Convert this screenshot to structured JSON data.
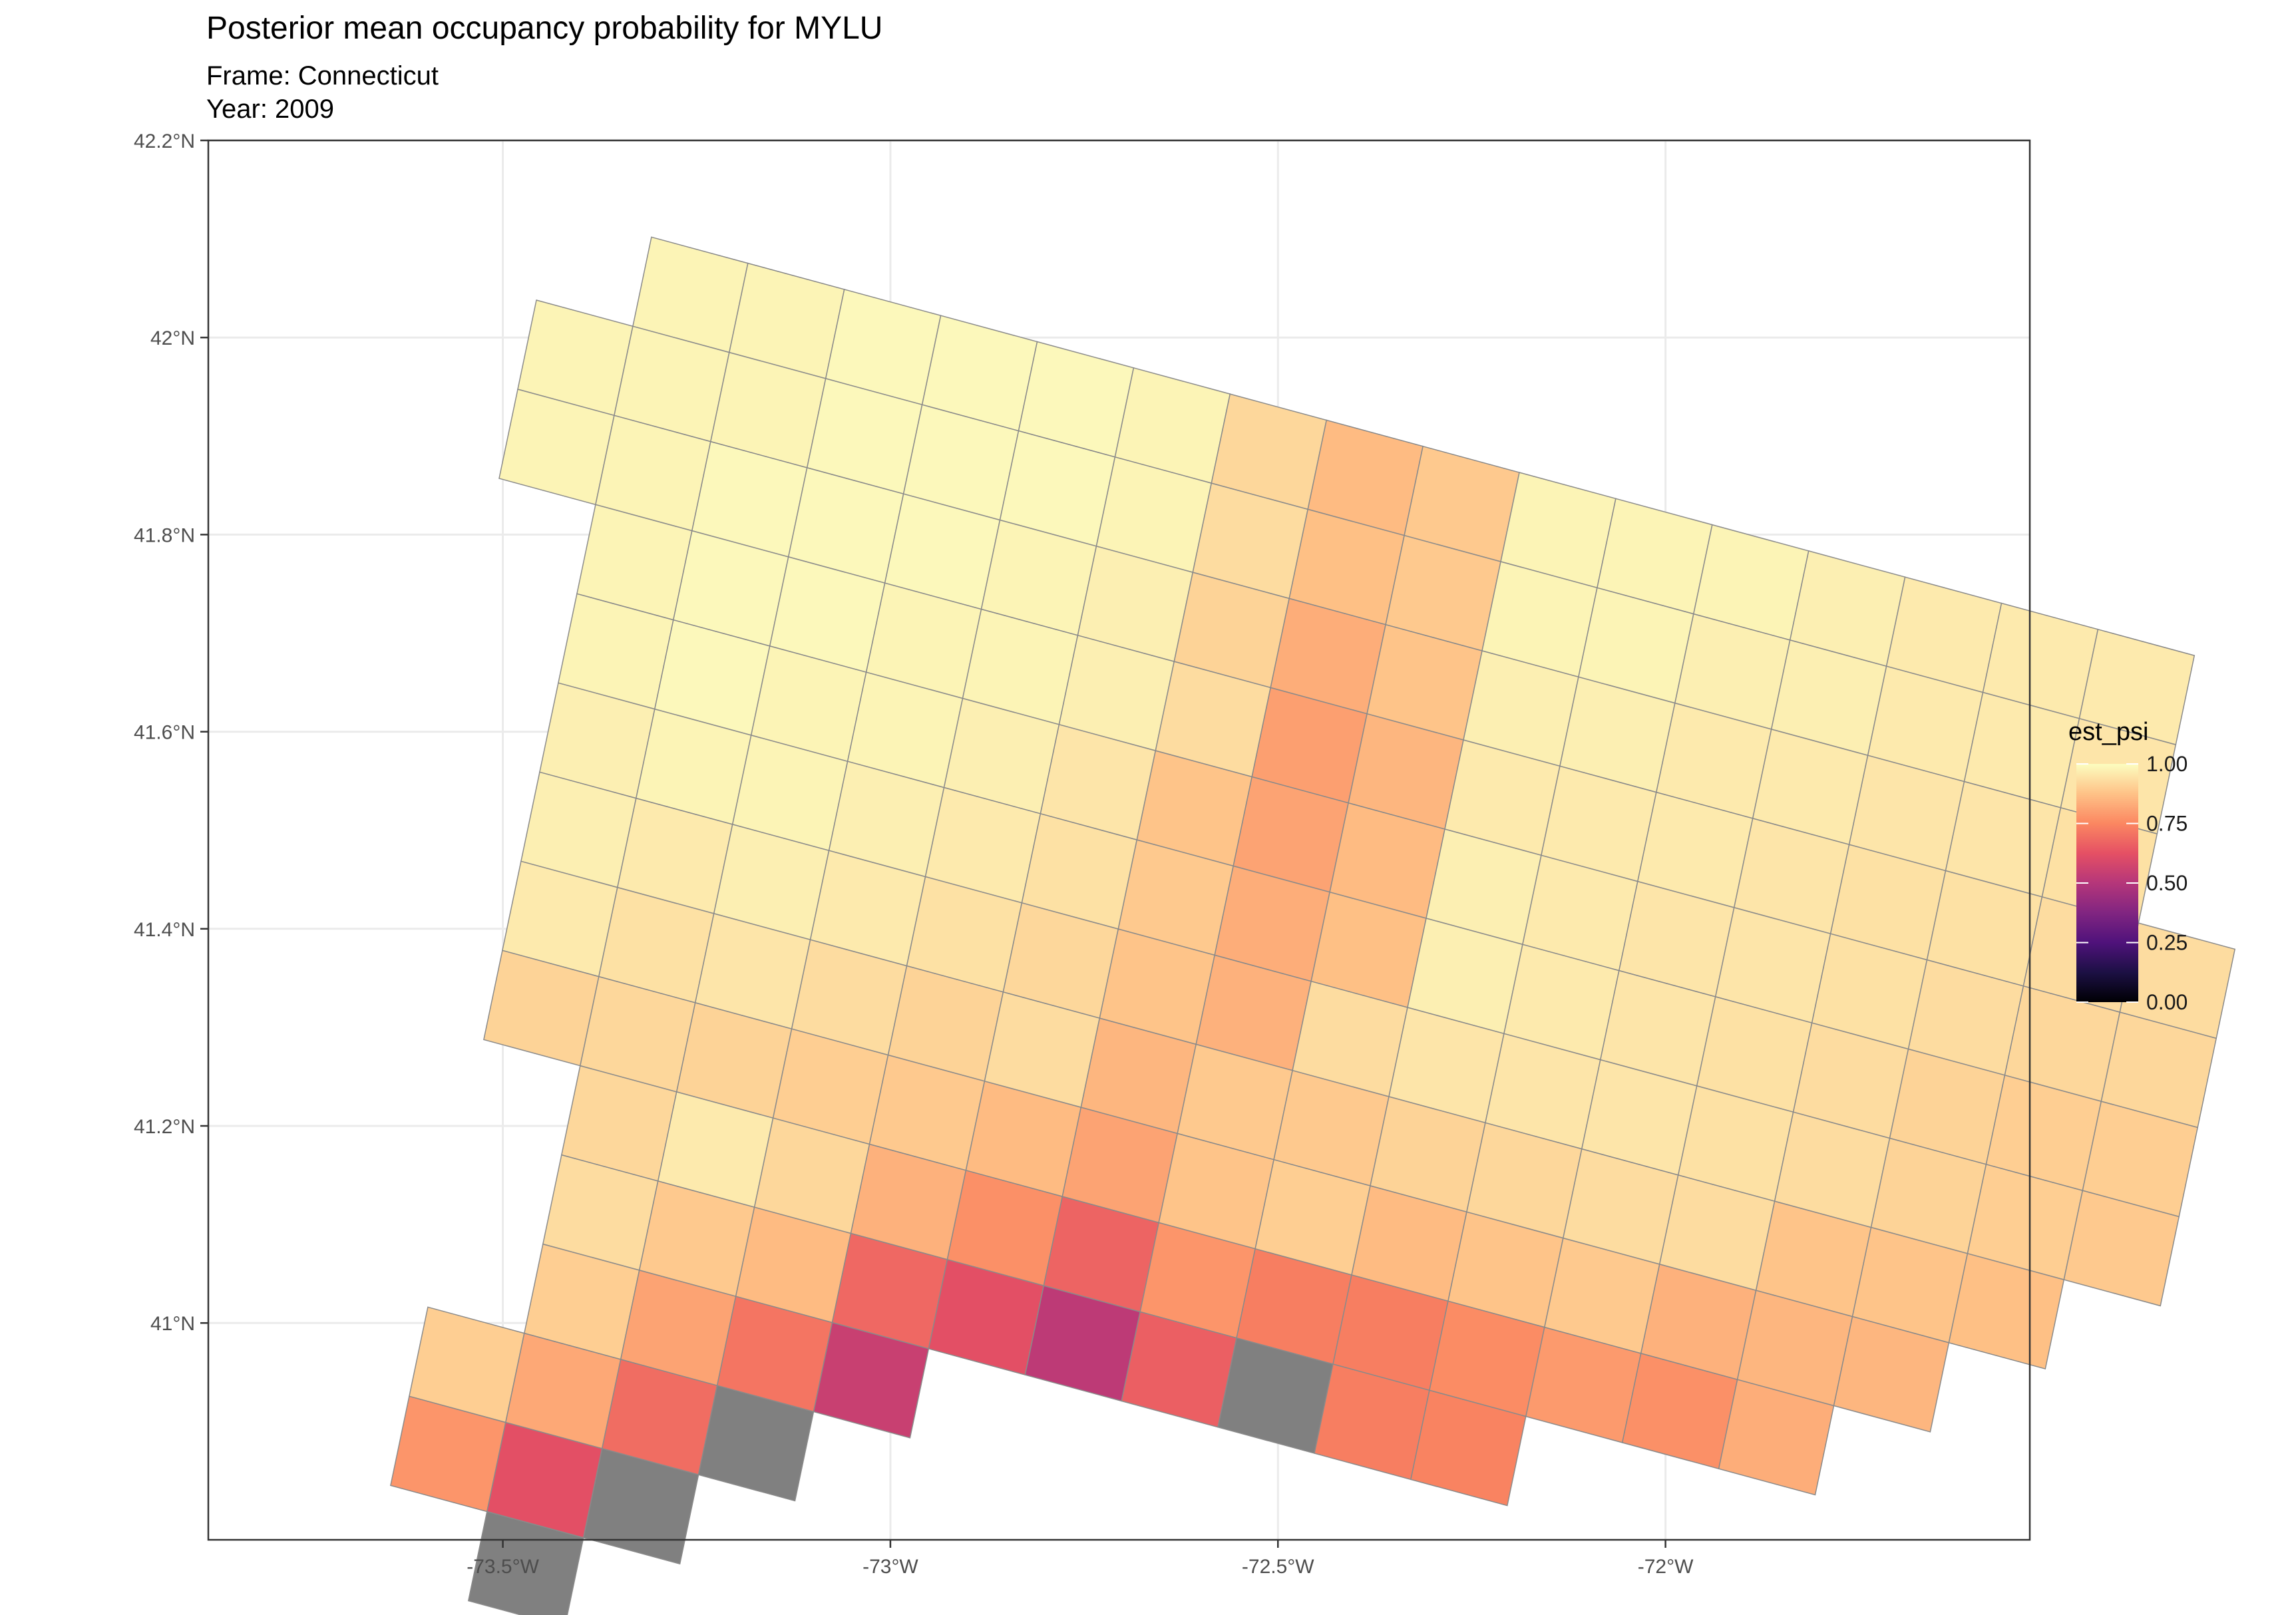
{
  "title": "Posterior mean occupancy probability for MYLU",
  "subtitle_frame": "Frame: Connecticut",
  "subtitle_year": "Year: 2009",
  "chart_data": {
    "type": "heatmap",
    "projection": "grid cells over longitude/latitude",
    "xlim": [
      -73.88,
      -71.53
    ],
    "ylim": [
      40.78,
      42.2
    ],
    "x_ticks": [
      {
        "value": -73.5,
        "label": "73.5°W"
      },
      {
        "value": -73.0,
        "label": "73°W"
      },
      {
        "value": -72.5,
        "label": "72.5°W"
      },
      {
        "value": -72.0,
        "label": "72°W"
      }
    ],
    "y_ticks": [
      {
        "value": 41.0,
        "label": "41°N"
      },
      {
        "value": 41.2,
        "label": "41.2°N"
      },
      {
        "value": 41.4,
        "label": "41.4°N"
      },
      {
        "value": 41.6,
        "label": "41.6°N"
      },
      {
        "value": 41.8,
        "label": "41.8°N"
      },
      {
        "value": 42.0,
        "label": "42°N"
      },
      {
        "value": 42.2,
        "label": "42.2°N"
      }
    ],
    "grid": true,
    "na_color": "#808080",
    "colorscale": "magma",
    "legend": {
      "title": "est_psi",
      "position": "right",
      "range": [
        0,
        1
      ],
      "ticks": [
        "0.00",
        "0.25",
        "0.50",
        "0.75",
        "1.00"
      ]
    },
    "grid_rows": [
      {
        "row": 0,
        "col_start": 1,
        "values": [
          0.98,
          0.98,
          0.99,
          0.99,
          0.99,
          0.98,
          0.92,
          0.86,
          0.89,
          0.98,
          0.98,
          0.98,
          0.97,
          0.96,
          0.96,
          0.96
        ]
      },
      {
        "row": 1,
        "col_start": 0,
        "values": [
          0.98,
          0.98,
          0.98,
          0.99,
          0.99,
          0.99,
          0.98,
          0.93,
          0.87,
          0.89,
          0.98,
          0.98,
          0.97,
          0.97,
          0.96,
          0.96,
          0.95
        ]
      },
      {
        "row": 2,
        "col_start": 0,
        "values": [
          0.98,
          0.98,
          0.99,
          0.99,
          0.99,
          0.98,
          0.97,
          0.91,
          0.83,
          0.88,
          0.97,
          0.97,
          0.96,
          0.96,
          0.95,
          0.95,
          0.94
        ]
      },
      {
        "row": 3,
        "col_start": 1,
        "values": [
          0.98,
          0.99,
          0.99,
          0.98,
          0.98,
          0.97,
          0.93,
          0.8,
          0.85,
          0.96,
          0.96,
          0.96,
          0.95,
          0.94,
          0.94,
          0.93,
          0.93
        ]
      },
      {
        "row": 4,
        "col_start": 1,
        "values": [
          0.98,
          0.99,
          0.98,
          0.98,
          0.97,
          0.95,
          0.88,
          0.81,
          0.86,
          0.97,
          0.96,
          0.95,
          0.95,
          0.94,
          0.93,
          0.92,
          0.92
        ]
      },
      {
        "row": 5,
        "col_start": 1,
        "values": [
          0.97,
          0.98,
          0.98,
          0.97,
          0.96,
          0.94,
          0.89,
          0.83,
          0.87,
          0.97,
          0.96,
          0.95,
          0.94,
          0.93,
          0.91,
          0.9,
          0.9
        ]
      },
      {
        "row": 6,
        "col_start": 1,
        "values": [
          0.97,
          0.96,
          0.97,
          0.96,
          0.94,
          0.92,
          0.88,
          0.84,
          0.93,
          0.95,
          0.95,
          0.95,
          0.94,
          0.93,
          0.91,
          0.9,
          0.89
        ]
      },
      {
        "row": 7,
        "col_start": 1,
        "values": [
          0.96,
          0.94,
          0.95,
          0.93,
          0.91,
          0.93,
          0.85,
          0.89,
          0.89,
          0.91,
          0.92,
          0.93,
          0.93,
          0.88,
          0.88,
          0.87
        ]
      },
      {
        "row": 8,
        "col_start": 1,
        "values": [
          0.91,
          0.92,
          0.91,
          0.9,
          0.89,
          0.86,
          0.81,
          0.88,
          0.9,
          0.86,
          0.88,
          0.89,
          0.84,
          0.85,
          0.85
        ]
      },
      {
        "row": 9,
        "col_start": 2,
        "values": [
          0.92,
          0.96,
          0.92,
          0.84,
          0.77,
          0.67,
          0.78,
          0.73,
          0.73,
          0.76,
          0.79,
          0.77,
          0.83
        ]
      },
      {
        "row": 10,
        "col_start": 2,
        "values": [
          0.93,
          0.89,
          0.86,
          0.68,
          0.62,
          0.52,
          0.66,
          null,
          0.73,
          0.74
        ]
      },
      {
        "row": 11,
        "col_start": 2,
        "values": [
          0.9,
          0.81,
          0.71,
          0.55
        ]
      },
      {
        "row": 12,
        "col_start": 1,
        "values": [
          0.9,
          0.82,
          0.69,
          null
        ]
      },
      {
        "row": 13,
        "col_start": 1,
        "values": [
          0.78,
          0.62,
          null
        ]
      },
      {
        "row": 14,
        "col_start": 2,
        "values": [
          null
        ]
      }
    ]
  }
}
